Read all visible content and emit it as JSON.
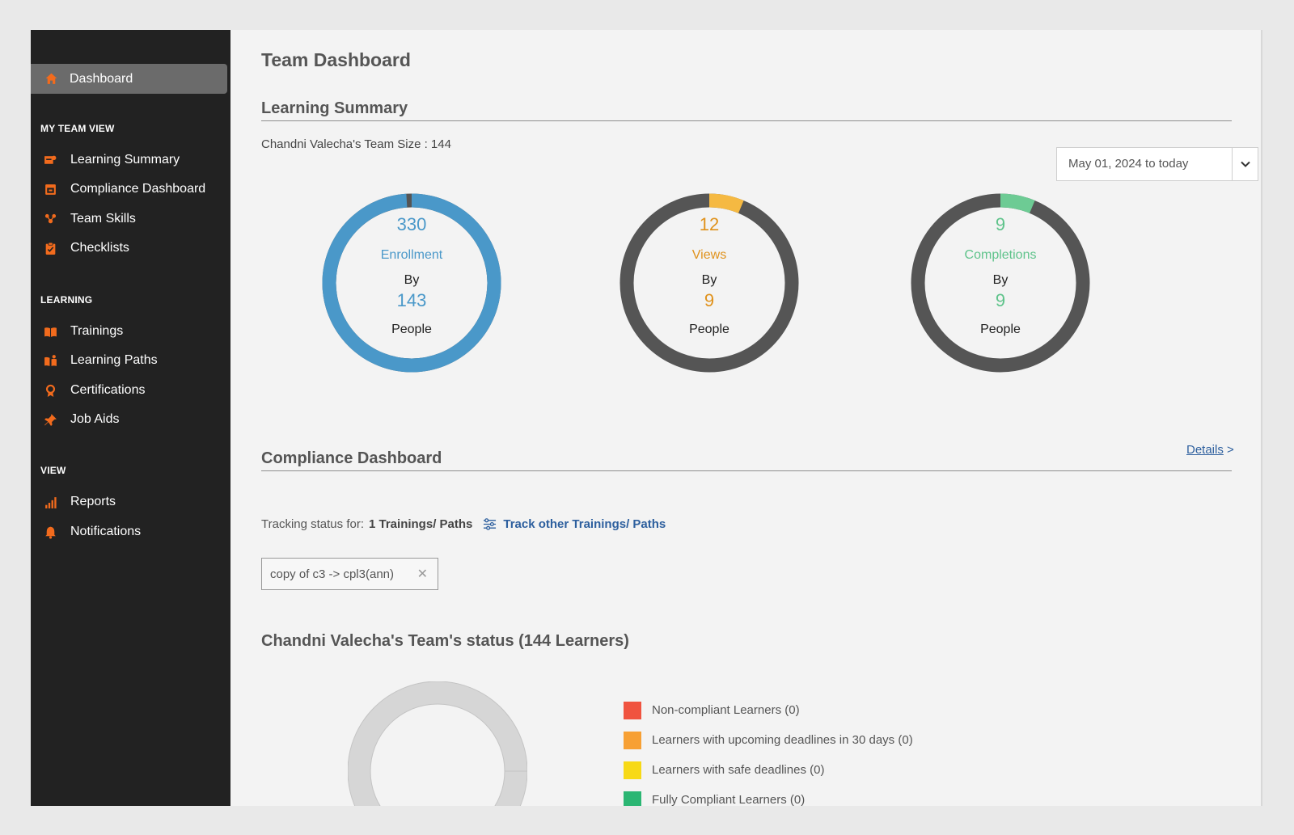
{
  "sidebar": {
    "dashboard": {
      "label": "Dashboard",
      "icon": "home-icon"
    },
    "sections": {
      "my_team_view": {
        "title": "MY TEAM VIEW",
        "items": [
          {
            "label": "Learning Summary",
            "icon": "learning-summary-icon"
          },
          {
            "label": "Compliance Dashboard",
            "icon": "calendar-icon"
          },
          {
            "label": "Team Skills",
            "icon": "team-skills-icon"
          },
          {
            "label": "Checklists",
            "icon": "clipboard-icon"
          }
        ]
      },
      "learning": {
        "title": "LEARNING",
        "items": [
          {
            "label": "Trainings",
            "icon": "book-icon"
          },
          {
            "label": "Learning Paths",
            "icon": "learning-paths-icon"
          },
          {
            "label": "Certifications",
            "icon": "ribbon-icon"
          },
          {
            "label": "Job Aids",
            "icon": "pin-icon"
          }
        ]
      },
      "view": {
        "title": "VIEW",
        "items": [
          {
            "label": "Reports",
            "icon": "bar-chart-icon"
          },
          {
            "label": "Notifications",
            "icon": "bell-icon"
          }
        ]
      }
    },
    "accent_color": "#f26b1d"
  },
  "main": {
    "page_title": "Team Dashboard",
    "learning_summary": {
      "title": "Learning Summary",
      "team_size": "Chandni Valecha's Team Size : 144",
      "date_range": "May 01, 2024 to today",
      "cards": [
        {
          "count": "330",
          "metric": "Enrollment",
          "by": "By",
          "people_count": "143",
          "people": "People",
          "color": "#4a98c9",
          "fraction": 0.99
        },
        {
          "count": "12",
          "metric": "Views",
          "by": "By",
          "people_count": "9",
          "people": "People",
          "color": "#f5b942",
          "fraction": 0.063
        },
        {
          "count": "9",
          "metric": "Completions",
          "by": "By",
          "people_count": "9",
          "people": "People",
          "color": "#6dcb94",
          "fraction": 0.063
        }
      ],
      "details_link": "Details",
      "details_arrow": ">"
    },
    "compliance": {
      "title": "Compliance Dashboard",
      "tracking_label": "Tracking status for:",
      "tracking_count": "1 Trainings/ Paths",
      "track_link": "Track other Trainings/ Paths",
      "chip": "copy of c3 -> cpl3(ann)",
      "chip_close": "✕",
      "team_status": "Chandni Valecha's Team's status (144 Learners)",
      "legend": [
        {
          "label": "Non-compliant Learners (0)",
          "color": "#f0533f"
        },
        {
          "label": "Learners with upcoming deadlines in 30 days (0)",
          "color": "#f7a034"
        },
        {
          "label": "Learners with safe deadlines (0)",
          "color": "#f7d916"
        },
        {
          "label": "Fully Compliant Learners (0)",
          "color": "#2bb673"
        }
      ]
    }
  }
}
